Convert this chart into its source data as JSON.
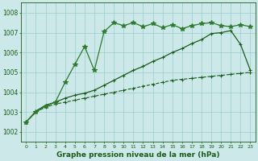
{
  "bg_color": "#cce8e8",
  "grid_color": "#99cccc",
  "line_color_dark": "#1a5c1a",
  "ylabel_min": 1001.5,
  "ylabel_max": 1008.5,
  "xlabel_min": -0.5,
  "xlabel_max": 23.5,
  "xlabel_label": "Graphe pression niveau de la mer (hPa)",
  "yticks": [
    1002,
    1003,
    1004,
    1005,
    1006,
    1007,
    1008
  ],
  "xticks": [
    0,
    1,
    2,
    3,
    4,
    5,
    6,
    7,
    8,
    9,
    10,
    11,
    12,
    13,
    14,
    15,
    16,
    17,
    18,
    19,
    20,
    21,
    22,
    23
  ],
  "series": [
    {
      "x": [
        0,
        1,
        2,
        3,
        4,
        5,
        6,
        7,
        8,
        9,
        10,
        11,
        12,
        13,
        14,
        15,
        16,
        17,
        18,
        19,
        20,
        21,
        22,
        23
      ],
      "y": [
        1002.5,
        1003.0,
        1003.25,
        1003.4,
        1003.5,
        1003.6,
        1003.7,
        1003.8,
        1003.9,
        1004.0,
        1004.1,
        1004.2,
        1004.3,
        1004.4,
        1004.5,
        1004.6,
        1004.65,
        1004.7,
        1004.75,
        1004.8,
        1004.85,
        1004.9,
        1004.95,
        1005.0
      ],
      "style": "dashed",
      "color": "#1a5c1a",
      "linewidth": 0.8,
      "marker": "+",
      "markersize": 3
    },
    {
      "x": [
        0,
        1,
        2,
        3,
        4,
        5,
        6,
        7,
        8,
        9,
        10,
        11,
        12,
        13,
        14,
        15,
        16,
        17,
        18,
        19,
        20,
        21,
        22,
        23
      ],
      "y": [
        1002.5,
        1003.05,
        1003.35,
        1003.5,
        1003.7,
        1003.85,
        1003.95,
        1004.1,
        1004.35,
        1004.6,
        1004.85,
        1005.1,
        1005.3,
        1005.55,
        1005.75,
        1006.0,
        1006.2,
        1006.45,
        1006.65,
        1006.95,
        1007.0,
        1007.1,
        1006.4,
        1005.1
      ],
      "style": "solid",
      "color": "#1a5c1a",
      "linewidth": 0.9,
      "marker": "+",
      "markersize": 3
    },
    {
      "x": [
        0,
        1,
        2,
        3,
        4,
        5,
        6,
        7,
        8,
        9,
        10,
        11,
        12,
        13,
        14,
        15,
        16,
        17,
        18,
        19,
        20,
        21,
        22,
        23
      ],
      "y": [
        1002.5,
        1003.0,
        1003.3,
        1003.5,
        1004.5,
        1005.4,
        1006.3,
        1005.1,
        1007.05,
        1007.5,
        1007.35,
        1007.5,
        1007.3,
        1007.45,
        1007.25,
        1007.4,
        1007.2,
        1007.35,
        1007.45,
        1007.5,
        1007.35,
        1007.3,
        1007.4,
        1007.3
      ],
      "style": "solid",
      "color": "#2d7a2d",
      "linewidth": 0.9,
      "marker": "*",
      "markersize": 4
    }
  ]
}
